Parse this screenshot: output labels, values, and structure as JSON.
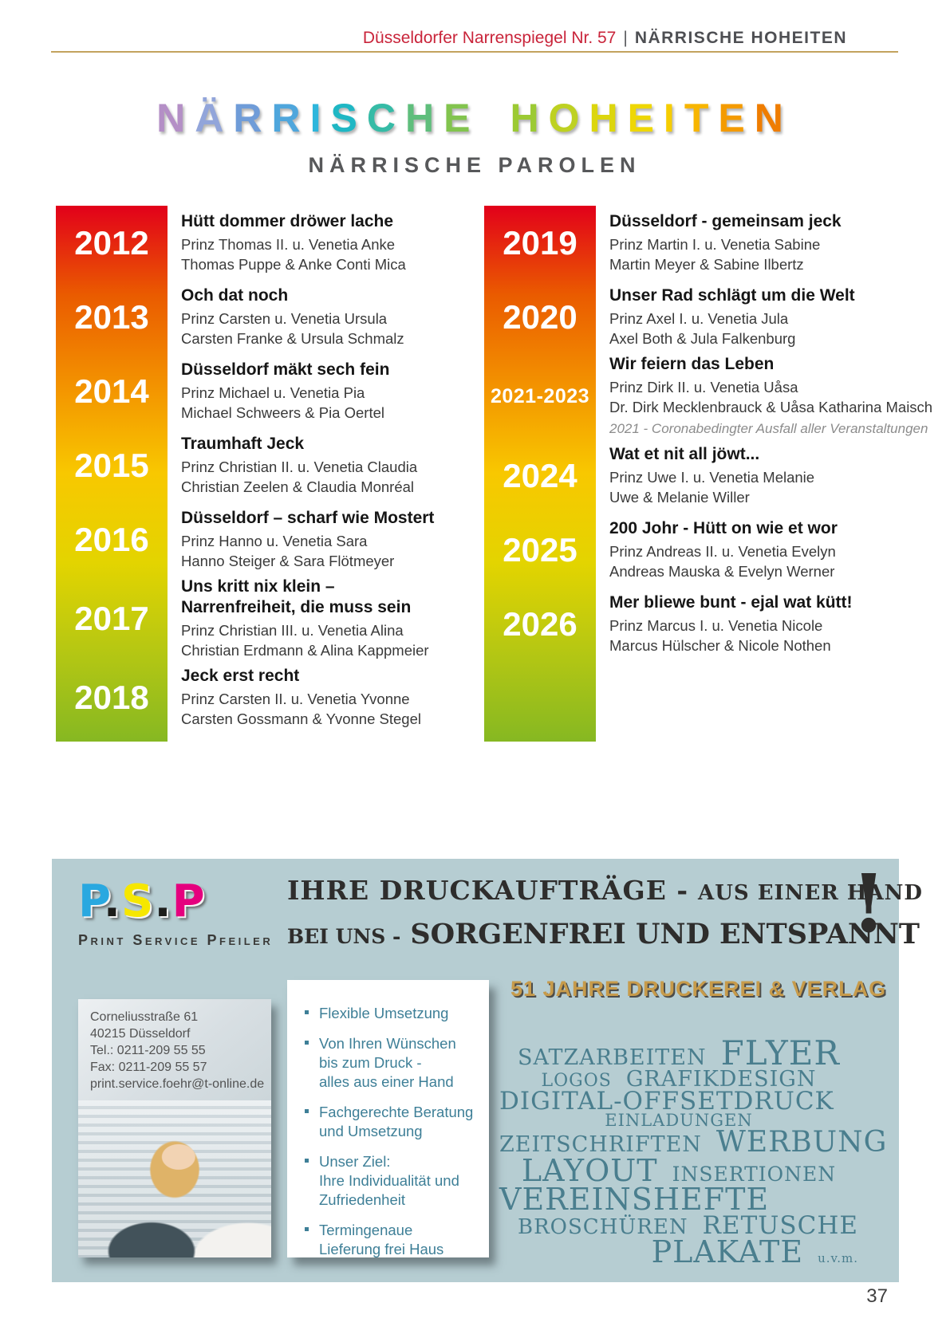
{
  "header": {
    "journal": "Düsseldorfer Narrenspiegel Nr. 57",
    "separator": "|",
    "section": "NÄRRISCHE HOHEITEN"
  },
  "title": {
    "letters": [
      {
        "ch": "N",
        "color": "#b48fc6"
      },
      {
        "ch": "Ä",
        "color": "#92a5da"
      },
      {
        "ch": "R",
        "color": "#6f9cd8"
      },
      {
        "ch": "R",
        "color": "#4fa6dc"
      },
      {
        "ch": "I",
        "color": "#2eb6dc"
      },
      {
        "ch": "S",
        "color": "#1fb7c4"
      },
      {
        "ch": "C",
        "color": "#36bba6"
      },
      {
        "ch": "H",
        "color": "#5fbe7c"
      },
      {
        "ch": "E",
        "color": "#82c44e"
      },
      {
        "ch": " ",
        "color": ""
      },
      {
        "ch": "H",
        "color": "#9cca34"
      },
      {
        "ch": "O",
        "color": "#bed122"
      },
      {
        "ch": "H",
        "color": "#dcd60e"
      },
      {
        "ch": "E",
        "color": "#eed704"
      },
      {
        "ch": "I",
        "color": "#f6cd00"
      },
      {
        "ch": "T",
        "color": "#f7b500"
      },
      {
        "ch": "E",
        "color": "#f49b00"
      },
      {
        "ch": "N",
        "color": "#ef7d00"
      }
    ],
    "subtitle": "NÄRRISCHE PAROLEN"
  },
  "parolen": {
    "left": [
      {
        "year": "2012",
        "motto": "Hütt dommer dröwer lache",
        "royals": "Prinz Thomas II. u. Venetia Anke",
        "names": "Thomas Puppe & Anke Conti Mica"
      },
      {
        "year": "2013",
        "motto": "Och dat noch",
        "royals": "Prinz Carsten u. Venetia Ursula",
        "names": "Carsten Franke & Ursula Schmalz"
      },
      {
        "year": "2014",
        "motto": "Düsseldorf mäkt sech fein",
        "royals": "Prinz Michael u. Venetia Pia",
        "names": "Michael Schweers & Pia Oertel"
      },
      {
        "year": "2015",
        "motto": "Traumhaft Jeck",
        "royals": "Prinz Christian II. u. Venetia Claudia",
        "names": "Christian Zeelen & Claudia Monréal"
      },
      {
        "year": "2016",
        "motto": "Düsseldorf – scharf wie Mostert",
        "royals": "Prinz Hanno u. Venetia Sara",
        "names": "Hanno Steiger & Sara Flötmeyer"
      },
      {
        "year": "2017",
        "motto": "Uns kritt nix klein –\nNarrenfreiheit, die muss sein",
        "royals": "Prinz Christian III. u. Venetia Alina",
        "names": "Christian Erdmann & Alina Kappmeier"
      },
      {
        "year": "2018",
        "motto": "Jeck erst recht",
        "royals": "Prinz Carsten II. u. Venetia Yvonne",
        "names": "Carsten Gossmann & Yvonne Stegel"
      }
    ],
    "right": [
      {
        "year": "2019",
        "motto": "Düsseldorf - gemeinsam jeck",
        "royals": "Prinz Martin I. u. Venetia Sabine",
        "names": "Martin Meyer & Sabine Ilbertz"
      },
      {
        "year": "2020",
        "motto": "Unser Rad schlägt um die Welt",
        "royals": "Prinz Axel I. u. Venetia Jula",
        "names": "Axel Both & Jula Falkenburg"
      },
      {
        "year": "2021-2023",
        "motto": "Wir feiern das Leben",
        "royals": "Prinz Dirk II. u. Venetia Uåsa",
        "names": "Dr. Dirk Mecklenbrauck & Uåsa Katharina Maisch",
        "note": "2021 - Coronabedingter Ausfall aller Veranstaltungen"
      },
      {
        "year": "2024",
        "motto": "Wat et nit all jöwt...",
        "royals": "Prinz Uwe I. u. Venetia Melanie",
        "names": "Uwe & Melanie Willer"
      },
      {
        "year": "2025",
        "motto": "200 Johr - Hütt on wie et wor",
        "royals": "Prinz Andreas II. u. Venetia Evelyn",
        "names": "Andreas Mauska & Evelyn Werner"
      },
      {
        "year": "2026",
        "motto": "Mer bliewe bunt - ejal wat kütt!",
        "royals": "Prinz Marcus I. u. Venetia Nicole",
        "names": "Marcus Hülscher & Nicole Nothen"
      }
    ]
  },
  "ad": {
    "logo": {
      "letters": [
        {
          "ch": "P",
          "color": "#29a8e0"
        },
        {
          "ch": ".",
          "color": "#1d1d1b"
        },
        {
          "ch": "S",
          "color": "#f6e700"
        },
        {
          "ch": ".",
          "color": "#1d1d1b"
        },
        {
          "ch": "P",
          "color": "#e5007e"
        }
      ],
      "tagline": "Print Service Pfeiler"
    },
    "headline": {
      "line1_big": "IHRE DRUCKAUFTRÄGE -",
      "line1_small": "AUS EINER HAND",
      "line2_small": "BEI UNS -",
      "line2_big": "SORGENFREI UND ENTSPANNT",
      "exclamation": "!"
    },
    "banner": "51 JAHRE DRUCKEREI & VERLAG",
    "contact": {
      "lines": [
        "Corneliusstraße 61",
        "40215 Düsseldorf",
        "Tel.: 0211-209 55 55",
        "Fax: 0211-209 55 57",
        "print.service.foehr@t-online.de"
      ]
    },
    "bullets": [
      "Flexible Umsetzung",
      "Von Ihren Wünschen\nbis zum Druck -\nalles aus einer Hand",
      "Fachgerechte Beratung\nund Umsetzung",
      "Unser Ziel:\nIhre Individualität und\nZufriedenheit",
      "Termingenaue\nLieferung frei Haus"
    ],
    "wordcloud": {
      "lines": [
        {
          "align": "center",
          "words": [
            {
              "text": "SATZARBEITEN",
              "size": 27
            },
            {
              "text": "FLYER",
              "size": 42
            }
          ]
        },
        {
          "align": "center",
          "words": [
            {
              "text": "LOGOS",
              "size": 22
            },
            {
              "text": "GRAFIKDESIGN",
              "size": 27
            }
          ]
        },
        {
          "align": "left",
          "words": [
            {
              "text": "DIGITAL-OFFSETDRUCK",
              "size": 31
            }
          ]
        },
        {
          "align": "center",
          "words": [
            {
              "text": "EINLADUNGEN",
              "size": 21
            }
          ]
        },
        {
          "align": "left",
          "words": [
            {
              "text": "ZEITSCHRIFTEN",
              "size": 27
            },
            {
              "text": "WERBUNG",
              "size": 36
            }
          ]
        },
        {
          "align": "center",
          "words": [
            {
              "text": "LAYOUT",
              "size": 38
            },
            {
              "text": "INSERTIONEN",
              "size": 25
            }
          ]
        },
        {
          "align": "left",
          "words": [
            {
              "text": "VEREINSHEFTE",
              "size": 38
            }
          ]
        },
        {
          "align": "right",
          "words": [
            {
              "text": "BROSCHÜREN",
              "size": 26
            },
            {
              "text": "RETUSCHE",
              "size": 31
            }
          ]
        },
        {
          "align": "right",
          "words": [
            {
              "text": "PLAKATE",
              "size": 38
            },
            {
              "text": "u.v.m.",
              "size": 15
            }
          ]
        }
      ]
    }
  },
  "page_number": "37",
  "colors": {
    "header_red": "#c9243a",
    "rule_gold": "#c3a35e",
    "subtitle_gray": "#57585a",
    "ad_background": "#b6cdd2",
    "ad_text_dark": "#2e2d2c",
    "banner_gold": "#c79b4b",
    "wordcloud_teal": "#4a7e8e",
    "bullet_teal": "#3e7f97",
    "note_gray": "#8c8c8c",
    "bar_gradient": [
      "#e2001a",
      "#ea5b00",
      "#f39200",
      "#f8c800",
      "#e3d400",
      "#b5c713",
      "#86b822"
    ]
  }
}
